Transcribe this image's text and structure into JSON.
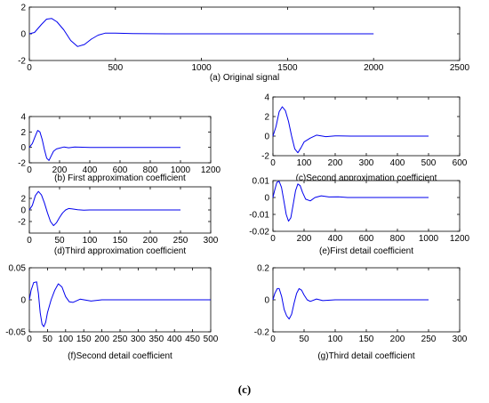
{
  "figure_label": "(c)",
  "colors": {
    "signal": "#0000ee",
    "axes": "#000000",
    "background": "#ffffff"
  },
  "chart_data": [
    {
      "type": "line",
      "xlabel": "(a) Original signal",
      "xlim": [
        0,
        2500
      ],
      "ylim": [
        -2,
        2
      ],
      "xticks": [
        0,
        500,
        1000,
        1500,
        2000,
        2500
      ],
      "yticks": [
        -2,
        0,
        2
      ],
      "grid": false,
      "series": [
        {
          "x": [
            0,
            30,
            70,
            100,
            130,
            160,
            200,
            240,
            280,
            320,
            360,
            400,
            440,
            500,
            600,
            800,
            1000,
            1500,
            2000
          ],
          "values": [
            0,
            0.1,
            0.7,
            1.1,
            1.15,
            0.9,
            0.3,
            -0.5,
            -0.95,
            -0.8,
            -0.4,
            -0.1,
            0.05,
            0.05,
            0.02,
            0,
            0,
            0,
            0
          ]
        }
      ]
    },
    {
      "type": "line",
      "xlabel": "(b) First approximation coefficient",
      "xlim": [
        0,
        1200
      ],
      "ylim": [
        -2,
        4
      ],
      "xticks": [
        0,
        200,
        400,
        600,
        800,
        1000,
        1200
      ],
      "yticks": [
        -2,
        0,
        2,
        4
      ],
      "grid": false,
      "series": [
        {
          "x": [
            0,
            20,
            40,
            55,
            70,
            85,
            100,
            115,
            130,
            145,
            160,
            180,
            200,
            230,
            260,
            300,
            350,
            400,
            500,
            700,
            1000
          ],
          "values": [
            0,
            0.5,
            1.5,
            2.2,
            2.0,
            1.0,
            -0.3,
            -1.4,
            -1.7,
            -1.1,
            -0.5,
            -0.2,
            -0.1,
            0.05,
            -0.05,
            0.05,
            0.02,
            0,
            0,
            0,
            0
          ]
        }
      ]
    },
    {
      "type": "line",
      "xlabel": "(c)Second approximation coefficient",
      "xlim": [
        0,
        600
      ],
      "ylim": [
        -2,
        4
      ],
      "xticks": [
        0,
        100,
        200,
        300,
        400,
        500,
        600
      ],
      "yticks": [
        -2,
        0,
        2,
        4
      ],
      "grid": false,
      "series": [
        {
          "x": [
            0,
            10,
            20,
            30,
            40,
            50,
            60,
            70,
            80,
            90,
            100,
            120,
            140,
            170,
            200,
            250,
            300,
            400,
            500
          ],
          "values": [
            0,
            1.0,
            2.5,
            3.0,
            2.6,
            1.5,
            0,
            -1.3,
            -1.7,
            -1.2,
            -0.6,
            -0.2,
            0.1,
            -0.05,
            0.03,
            0,
            0,
            0,
            0
          ]
        }
      ]
    },
    {
      "type": "line",
      "xlabel": "(d)Third approximation coefficient",
      "xlim": [
        0,
        300
      ],
      "ylim": [
        -4,
        4
      ],
      "xticks": [
        0,
        50,
        100,
        150,
        200,
        250,
        300
      ],
      "yticks": [
        -2,
        0,
        2
      ],
      "grid": false,
      "series": [
        {
          "x": [
            0,
            5,
            10,
            15,
            20,
            25,
            30,
            35,
            40,
            45,
            50,
            55,
            60,
            65,
            70,
            80,
            90,
            100,
            150,
            200,
            250
          ],
          "values": [
            0,
            0.8,
            2.5,
            3.2,
            2.6,
            1.2,
            -0.5,
            -2.0,
            -2.7,
            -2.2,
            -1.3,
            -0.5,
            0,
            0.25,
            0.2,
            0.05,
            -0.05,
            0,
            0,
            0,
            0
          ]
        }
      ]
    },
    {
      "type": "line",
      "xlabel": "(e)First detail coefficient",
      "xlim": [
        0,
        1200
      ],
      "ylim": [
        -0.02,
        0.01
      ],
      "xticks": [
        0,
        200,
        400,
        600,
        800,
        1000,
        1200
      ],
      "yticks": [
        -0.02,
        -0.01,
        0,
        0.01
      ],
      "grid": false,
      "series": [
        {
          "x": [
            0,
            10,
            25,
            40,
            55,
            70,
            85,
            100,
            115,
            130,
            145,
            160,
            175,
            190,
            210,
            240,
            270,
            310,
            360,
            420,
            480,
            600,
            800,
            1000
          ],
          "values": [
            0,
            0.004,
            0.009,
            0.0095,
            0.006,
            -0.002,
            -0.01,
            -0.014,
            -0.012,
            -0.004,
            0.004,
            0.008,
            0.007,
            0.003,
            -0.001,
            -0.002,
            0,
            0.001,
            0.0003,
            0.0004,
            0,
            0,
            0,
            0
          ]
        }
      ]
    },
    {
      "type": "line",
      "xlabel": "(f)Second detail coefficient",
      "xlim": [
        0,
        500
      ],
      "ylim": [
        -0.05,
        0.05
      ],
      "xticks": [
        0,
        50,
        100,
        150,
        200,
        250,
        300,
        350,
        400,
        450,
        500
      ],
      "yticks": [
        -0.05,
        0,
        0.05
      ],
      "grid": false,
      "series": [
        {
          "x": [
            0,
            5,
            12,
            20,
            25,
            30,
            35,
            40,
            45,
            50,
            60,
            70,
            80,
            90,
            100,
            110,
            120,
            140,
            170,
            200,
            250,
            300,
            400,
            500
          ],
          "values": [
            0,
            0.015,
            0.027,
            0.028,
            0.01,
            -0.02,
            -0.038,
            -0.042,
            -0.035,
            -0.02,
            0,
            0.015,
            0.025,
            0.02,
            0.005,
            -0.003,
            -0.004,
            0.001,
            -0.002,
            0,
            0,
            0,
            0,
            0
          ]
        }
      ]
    },
    {
      "type": "line",
      "xlabel": "(g)Third detail coefficient",
      "xlim": [
        0,
        300
      ],
      "ylim": [
        -0.2,
        0.2
      ],
      "xticks": [
        0,
        50,
        100,
        150,
        200,
        250,
        300
      ],
      "yticks": [
        -0.2,
        0,
        0.2
      ],
      "grid": false,
      "series": [
        {
          "x": [
            0,
            3,
            7,
            10,
            14,
            18,
            22,
            26,
            30,
            34,
            38,
            42,
            46,
            50,
            55,
            60,
            70,
            80,
            100,
            150,
            200,
            250
          ],
          "values": [
            0,
            0.04,
            0.07,
            0.07,
            0.02,
            -0.06,
            -0.1,
            -0.12,
            -0.09,
            -0.02,
            0.04,
            0.07,
            0.06,
            0.03,
            0,
            -0.01,
            0.005,
            -0.005,
            0,
            0,
            0,
            0
          ]
        }
      ]
    }
  ]
}
